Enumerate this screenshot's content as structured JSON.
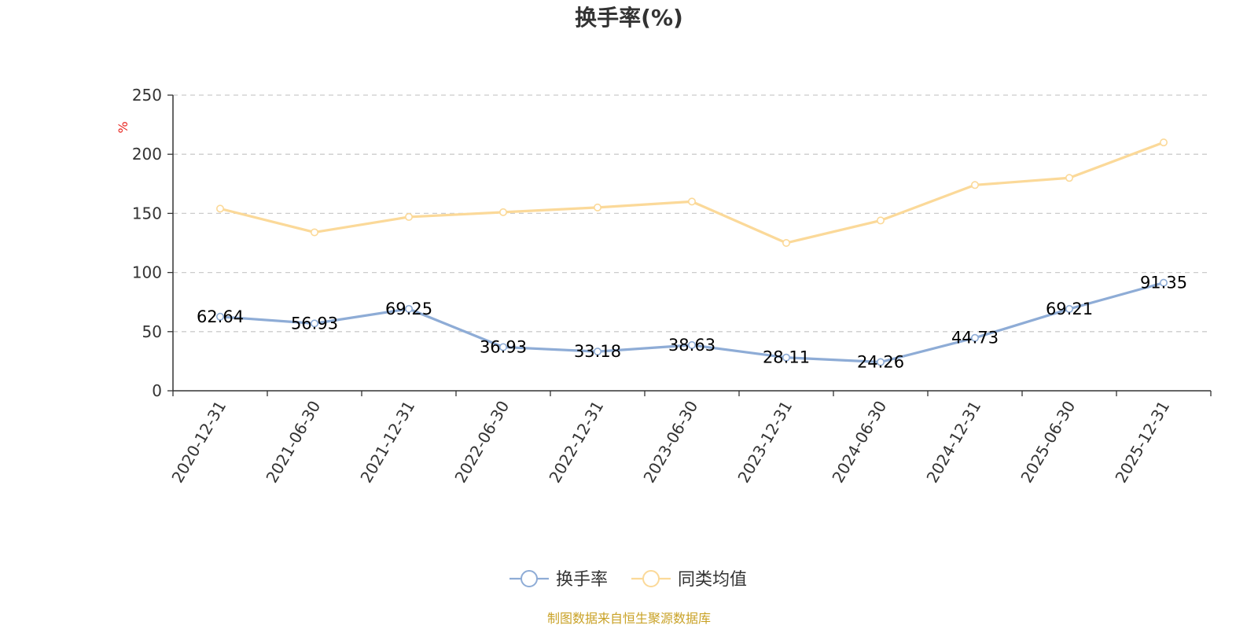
{
  "chart_data": {
    "type": "line",
    "title": "换手率(%)",
    "ylabel": "%",
    "xlabel": "",
    "ylim": [
      0,
      250
    ],
    "yticks": [
      0,
      50,
      100,
      150,
      200,
      250
    ],
    "grid": true,
    "legend_position": "bottom-center",
    "categories": [
      "2020-12-31",
      "2021-06-30",
      "2021-12-31",
      "2022-06-30",
      "2022-12-31",
      "2023-06-30",
      "2023-12-31",
      "2024-06-30",
      "2024-12-31",
      "2025-06-30",
      "2025-12-31"
    ],
    "series": [
      {
        "name": "换手率",
        "color": "#8eacd6",
        "show_labels": true,
        "values": [
          62.64,
          56.93,
          69.25,
          36.93,
          33.18,
          38.63,
          28.11,
          24.26,
          44.73,
          69.21,
          91.35
        ],
        "labels": [
          "62.64",
          "56.93",
          "69.25",
          "36.93",
          "33.18",
          "38.63",
          "28.11",
          "24.26",
          "44.73",
          "69.21",
          "91.35"
        ]
      },
      {
        "name": "同类均值",
        "color": "#fbd999",
        "show_labels": false,
        "values": [
          154,
          134,
          147,
          151,
          155,
          160,
          125,
          144,
          174,
          180,
          210
        ]
      }
    ]
  },
  "colors": {
    "axis": "#333333",
    "grid": "#cccccc",
    "unit": "#e8251f",
    "source": "#c9a227"
  },
  "source": "制图数据来自恒生聚源数据库"
}
